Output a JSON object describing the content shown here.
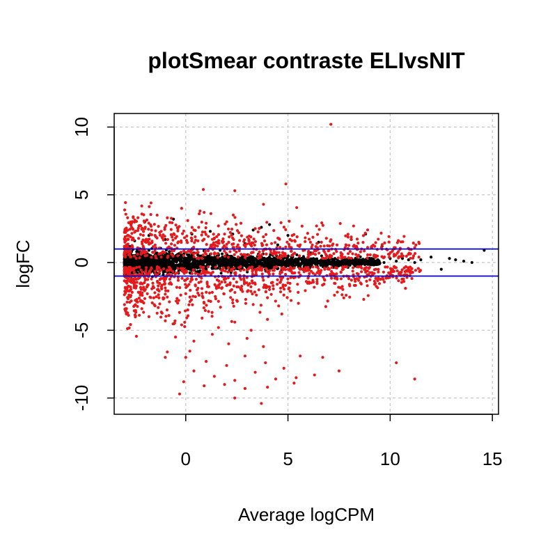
{
  "chart_data": {
    "type": "scatter",
    "title": "plotSmear contraste ELIvsNIT",
    "xlabel": "Average logCPM",
    "ylabel": "logFC",
    "xlim": [
      -3.5,
      15.3
    ],
    "ylim": [
      -11.2,
      11.0
    ],
    "x_ticks": [
      0,
      5,
      10,
      15
    ],
    "x_tick_labels": [
      "0",
      "5",
      "10",
      "15"
    ],
    "y_ticks": [
      -10,
      -5,
      0,
      5,
      10
    ],
    "y_tick_labels": [
      "-10",
      "-5",
      "0",
      "5",
      "10"
    ],
    "grid": true,
    "hlines": [
      1,
      -1
    ],
    "colors": {
      "not_de": "#000000",
      "de": "#e41a1c",
      "threshold": "#0000cc",
      "grid": "#c8c8c8"
    },
    "series": [
      {
        "role": "not_de",
        "color": "#000000",
        "points": [
          [
            -2.9,
            0.2
          ],
          [
            -2.8,
            -0.3
          ],
          [
            -2.7,
            0.5
          ],
          [
            -2.6,
            -0.6
          ],
          [
            -2.5,
            0.1
          ],
          [
            -2.4,
            0.8
          ],
          [
            -2.3,
            -0.4
          ],
          [
            -2.2,
            0.3
          ],
          [
            -2.1,
            -0.8
          ],
          [
            -2.0,
            0.6
          ],
          [
            -1.9,
            -0.2
          ],
          [
            -1.8,
            0.9
          ],
          [
            -1.7,
            -0.7
          ],
          [
            -1.6,
            0.4
          ],
          [
            -1.5,
            -0.1
          ],
          [
            -1.4,
            0.7
          ],
          [
            -1.3,
            -0.5
          ],
          [
            -1.2,
            0.2
          ],
          [
            -1.1,
            -0.9
          ],
          [
            -1.0,
            0.5
          ],
          [
            -0.9,
            -0.3
          ],
          [
            -0.8,
            0.8
          ],
          [
            -0.7,
            -0.6
          ],
          [
            -0.6,
            0.1
          ],
          [
            -0.5,
            -0.4
          ],
          [
            -0.4,
            0.6
          ],
          [
            -0.3,
            -0.2
          ],
          [
            -0.2,
            0.4
          ],
          [
            -0.1,
            -0.7
          ],
          [
            0.0,
            0.3
          ],
          [
            0.2,
            -0.5
          ],
          [
            0.4,
            0.7
          ],
          [
            0.6,
            -0.3
          ],
          [
            0.8,
            0.5
          ],
          [
            1.0,
            -0.6
          ],
          [
            1.2,
            0.2
          ],
          [
            1.4,
            -0.4
          ],
          [
            1.6,
            0.6
          ],
          [
            1.8,
            -0.2
          ],
          [
            2.0,
            0.4
          ],
          [
            2.2,
            -0.5
          ],
          [
            2.4,
            0.3
          ],
          [
            2.6,
            -0.3
          ],
          [
            2.8,
            0.5
          ],
          [
            3.0,
            -0.4
          ],
          [
            3.2,
            0.2
          ],
          [
            3.4,
            -0.2
          ],
          [
            3.6,
            0.4
          ],
          [
            3.8,
            -0.3
          ],
          [
            4.0,
            0.3
          ],
          [
            4.3,
            -0.2
          ],
          [
            4.6,
            0.3
          ],
          [
            4.9,
            -0.3
          ],
          [
            5.2,
            0.2
          ],
          [
            5.5,
            -0.2
          ],
          [
            5.8,
            0.3
          ],
          [
            6.1,
            -0.1
          ],
          [
            6.4,
            0.2
          ],
          [
            6.7,
            -0.2
          ],
          [
            7.0,
            0.1
          ],
          [
            7.3,
            0.3
          ],
          [
            7.6,
            -0.1
          ],
          [
            7.9,
            0.2
          ],
          [
            8.2,
            0.0
          ],
          [
            8.5,
            0.2
          ],
          [
            8.8,
            0.1
          ],
          [
            9.1,
            0.3
          ],
          [
            9.4,
            0.2
          ],
          [
            9.7,
            0.0
          ],
          [
            10.0,
            0.3
          ],
          [
            10.3,
            0.1
          ],
          [
            10.6,
            0.3
          ],
          [
            10.9,
            0.2
          ],
          [
            11.2,
            0.0
          ],
          [
            11.5,
            0.2
          ],
          [
            12.0,
            0.4
          ],
          [
            12.5,
            -0.5
          ],
          [
            12.9,
            0.3
          ],
          [
            13.2,
            0.2
          ],
          [
            13.6,
            0.1
          ],
          [
            14.0,
            0.0
          ],
          [
            14.6,
            0.9
          ],
          [
            -2.5,
            1.6
          ],
          [
            -1.8,
            2.0
          ],
          [
            -1.0,
            1.7
          ],
          [
            0.3,
            2.1
          ],
          [
            1.2,
            2.3
          ],
          [
            2.3,
            2.1
          ],
          [
            3.3,
            2.4
          ],
          [
            4.1,
            2.8
          ],
          [
            3.7,
            2.6
          ],
          [
            5.0,
            2.0
          ],
          [
            6.5,
            1.5
          ],
          [
            8.1,
            1.7
          ],
          [
            8.8,
            2.1
          ],
          [
            -2.0,
            3.0
          ],
          [
            -0.6,
            3.2
          ],
          [
            2.9,
            1.4
          ],
          [
            4.5,
            1.3
          ],
          [
            9.6,
            1.2
          ]
        ]
      },
      {
        "role": "de",
        "color": "#e41a1c",
        "points": [
          [
            7.1,
            10.2
          ],
          [
            4.9,
            5.8
          ],
          [
            2.4,
            5.3
          ],
          [
            -1.7,
            4.4
          ],
          [
            -0.2,
            4.0
          ],
          [
            0.7,
            3.8
          ],
          [
            0.9,
            3.7
          ],
          [
            -1.4,
            3.5
          ],
          [
            -0.9,
            3.3
          ],
          [
            0.1,
            3.1
          ],
          [
            1.0,
            2.9
          ],
          [
            1.6,
            2.7
          ],
          [
            2.7,
            2.9
          ],
          [
            3.4,
            2.5
          ],
          [
            6.4,
            2.7
          ],
          [
            -2.6,
            2.5
          ],
          [
            -2.2,
            2.7
          ],
          [
            -1.2,
            2.3
          ],
          [
            0.4,
            2.4
          ],
          [
            1.9,
            2.1
          ],
          [
            2.6,
            2.2
          ],
          [
            3.8,
            1.9
          ],
          [
            5.1,
            1.7
          ],
          [
            6.1,
            1.5
          ],
          [
            7.4,
            1.3
          ],
          [
            8.2,
            1.2
          ],
          [
            9.1,
            1.2
          ],
          [
            10.2,
            1.1
          ],
          [
            11.2,
            1.1
          ],
          [
            11.4,
            1.5
          ],
          [
            -2.7,
            1.9
          ],
          [
            -2.0,
            1.6
          ],
          [
            -1.5,
            2.0
          ],
          [
            -0.5,
            1.8
          ],
          [
            0.6,
            1.6
          ],
          [
            1.4,
            1.8
          ],
          [
            2.1,
            1.5
          ],
          [
            3.1,
            1.6
          ],
          [
            4.2,
            1.4
          ],
          [
            5.6,
            1.3
          ],
          [
            6.6,
            1.2
          ],
          [
            7.8,
            1.1
          ],
          [
            8.6,
            1.0
          ],
          [
            9.6,
            1.0
          ],
          [
            4.4,
            0.6
          ],
          [
            5.2,
            0.5
          ],
          [
            6.0,
            0.6
          ],
          [
            6.9,
            0.5
          ],
          [
            7.6,
            0.5
          ],
          [
            8.4,
            0.4
          ],
          [
            4.1,
            -0.6
          ],
          [
            5.0,
            -0.5
          ],
          [
            5.9,
            -0.6
          ],
          [
            6.8,
            -0.5
          ],
          [
            7.7,
            -0.5
          ],
          [
            8.6,
            -0.4
          ],
          [
            9.3,
            -0.5
          ],
          [
            10.2,
            -0.3
          ],
          [
            -2.5,
            -1.5
          ],
          [
            -1.9,
            -1.8
          ],
          [
            -1.3,
            -2.1
          ],
          [
            -0.7,
            -1.6
          ],
          [
            0.0,
            -2.3
          ],
          [
            0.6,
            -1.9
          ],
          [
            1.3,
            -2.2
          ],
          [
            2.0,
            -1.7
          ],
          [
            2.7,
            -2.0
          ],
          [
            3.4,
            -1.6
          ],
          [
            4.1,
            -1.8
          ],
          [
            5.0,
            -1.5
          ],
          [
            5.9,
            -1.4
          ],
          [
            6.8,
            -1.3
          ],
          [
            7.6,
            -1.2
          ],
          [
            8.5,
            -1.1
          ],
          [
            -2.2,
            -2.8
          ],
          [
            -1.5,
            -3.2
          ],
          [
            -0.8,
            -2.9
          ],
          [
            0.1,
            -3.5
          ],
          [
            0.9,
            -3.0
          ],
          [
            1.7,
            -3.3
          ],
          [
            2.5,
            -2.8
          ],
          [
            3.3,
            -3.1
          ],
          [
            4.0,
            -2.6
          ],
          [
            4.8,
            -2.4
          ],
          [
            5.5,
            -2.2
          ],
          [
            -1.8,
            -4.0
          ],
          [
            -1.0,
            -4.3
          ],
          [
            -0.2,
            -4.6
          ],
          [
            0.8,
            -4.1
          ],
          [
            1.6,
            -4.8
          ],
          [
            2.4,
            -4.4
          ],
          [
            3.2,
            -5.0
          ],
          [
            4.0,
            -4.2
          ],
          [
            4.7,
            -3.8
          ],
          [
            -2.8,
            -3.9
          ],
          [
            -0.5,
            -5.5
          ],
          [
            0.4,
            -5.8
          ],
          [
            1.3,
            -5.3
          ],
          [
            2.1,
            -6.0
          ],
          [
            3.0,
            -5.6
          ],
          [
            3.8,
            -6.2
          ],
          [
            -0.9,
            -6.6
          ],
          [
            0.0,
            -7.0
          ],
          [
            1.0,
            -7.3
          ],
          [
            2.0,
            -7.6
          ],
          [
            2.9,
            -6.9
          ],
          [
            3.9,
            -7.4
          ],
          [
            4.8,
            -7.8
          ],
          [
            5.6,
            -6.9
          ],
          [
            6.7,
            -7.0
          ],
          [
            0.4,
            -8.0
          ],
          [
            1.4,
            -8.4
          ],
          [
            2.4,
            -8.7
          ],
          [
            3.4,
            -8.1
          ],
          [
            4.4,
            -8.6
          ],
          [
            5.4,
            -8.5
          ],
          [
            6.3,
            -8.3
          ],
          [
            7.5,
            -8.0
          ],
          [
            -0.1,
            -8.8
          ],
          [
            0.9,
            -9.1
          ],
          [
            1.9,
            -9.0
          ],
          [
            2.9,
            -9.3
          ],
          [
            4.0,
            -9.2
          ],
          [
            5.3,
            -8.9
          ],
          [
            -0.3,
            -9.7
          ],
          [
            2.4,
            -10.0
          ],
          [
            3.7,
            -10.4
          ],
          [
            10.3,
            -7.4
          ],
          [
            11.2,
            -8.6
          ],
          [
            -1.0,
            -7.0
          ]
        ]
      }
    ],
    "de_band": {
      "x_min": -3.0,
      "x_max": 11.5,
      "y_spread_low": 1.5,
      "y_spread_high": 4.0
    }
  }
}
